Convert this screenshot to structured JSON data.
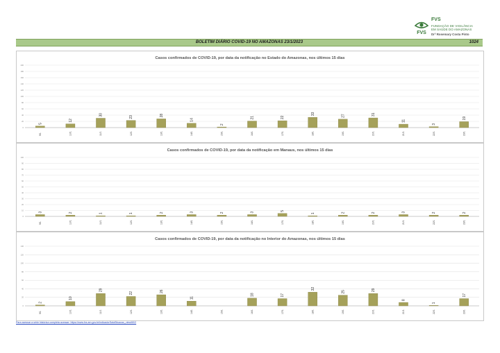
{
  "header": {
    "logo_title": "FVS",
    "logo_sub1": "FUNDAÇÃO DE VIGILÂNCIA",
    "logo_sub2": "EM SAÚDE DO AMAZONAS",
    "logo_director": "Drª Rosemary Costa Pinto",
    "logo_mark_text": "FVS"
  },
  "banner": {
    "title": "BOLETIM DIÁRIO COVID-19 NO AMAZONAS 23/1/2023",
    "number": "1024"
  },
  "colors": {
    "bar": "#a5a15a",
    "bar_stroke": "#8a8646",
    "grid": "#e2e2e2",
    "banner": "#a9c98a"
  },
  "chart_data": [
    {
      "type": "bar",
      "title": "Casos confirmados de COVID-19, por data da notificação no Estado do Amazonas, nos últimos 15 dias",
      "categories": [
        "9/1",
        "10/1",
        "11/1",
        "12/1",
        "13/1",
        "14/1",
        "15/1",
        "16/1",
        "17/1",
        "18/1",
        "19/1",
        "20/1",
        "21/1",
        "22/1",
        "23/1"
      ],
      "values": [
        5,
        12,
        30,
        23,
        28,
        14,
        2,
        21,
        22,
        33,
        27,
        31,
        11,
        3,
        19
      ],
      "yticks": [
        0,
        20,
        40,
        60,
        80,
        100,
        120,
        140,
        160,
        180,
        200
      ],
      "ylim": [
        0,
        200
      ],
      "grid": true
    },
    {
      "type": "bar",
      "title": "Casos confirmados de COVID-19, por data da notificação em Manaus, nos últimos 15 dias",
      "categories": [
        "9/1",
        "10/1",
        "11/1",
        "12/1",
        "13/1",
        "14/1",
        "15/1",
        "16/1",
        "17/1",
        "18/1",
        "19/1",
        "20/1",
        "21/1",
        "22/1",
        "23/1"
      ],
      "values": [
        3,
        2,
        1,
        1,
        2,
        3,
        2,
        3,
        5,
        1,
        2,
        2,
        3,
        2,
        2
      ],
      "yticks": [
        0,
        10,
        20,
        30,
        40,
        50,
        60,
        70,
        80,
        90,
        100
      ],
      "ylim": [
        0,
        100
      ],
      "grid": true
    },
    {
      "type": "bar",
      "title": "Casos confirmados de COVID-19, por data da notificação no Interior do Amazonas, nos últimos 15 dias",
      "categories": [
        "9/1",
        "10/1",
        "11/1",
        "12/1",
        "13/1",
        "14/1",
        "15/1",
        "16/1",
        "17/1",
        "18/1",
        "19/1",
        "20/1",
        "21/1",
        "22/1",
        "23/1"
      ],
      "values": [
        2,
        10,
        29,
        22,
        26,
        11,
        null,
        18,
        17,
        32,
        25,
        29,
        8,
        1,
        17
      ],
      "yticks": [
        0,
        20,
        40,
        60,
        80,
        100,
        120,
        140
      ],
      "ylim": [
        0,
        140
      ],
      "grid": true
    }
  ],
  "footer": {
    "link_text": "Para acessar a série histórica completa acessar: https://www.fvs.am.gov.br/indicadorSalaSituacao_view/60/2"
  }
}
